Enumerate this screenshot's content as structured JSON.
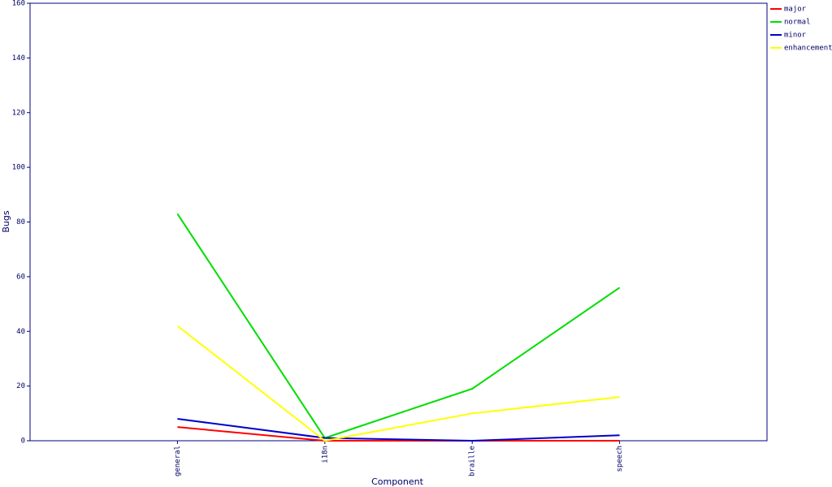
{
  "chart_data": {
    "type": "line",
    "x_label": "Component",
    "y_label": "Bugs",
    "categories": [
      "general",
      "i18n",
      "braille",
      "speech"
    ],
    "series": [
      {
        "name": "major",
        "color": "#ff0000",
        "values": [
          5,
          0,
          0,
          0
        ]
      },
      {
        "name": "normal",
        "color": "#00dd00",
        "values": [
          83,
          1,
          19,
          56
        ]
      },
      {
        "name": "minor",
        "color": "#0000cc",
        "values": [
          8,
          1,
          0,
          2
        ]
      },
      {
        "name": "enhancement",
        "color": "#ffff00",
        "values": [
          42,
          0,
          10,
          16
        ]
      }
    ],
    "ylim": [
      0,
      160
    ],
    "yticks": [
      0,
      20,
      40,
      60,
      80,
      100,
      120,
      140,
      160
    ],
    "legend": "right"
  }
}
